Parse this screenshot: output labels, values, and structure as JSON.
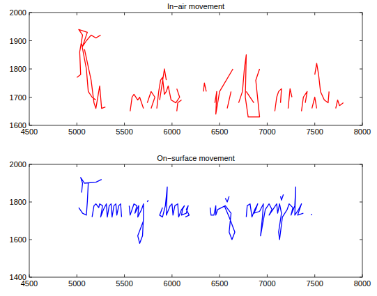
{
  "chart_data": [
    {
      "type": "line",
      "title": "In−air movement",
      "xlim": [
        4500,
        8000
      ],
      "xticks": [
        4500,
        5000,
        5500,
        6000,
        6500,
        7000,
        7500,
        8000
      ],
      "ylim": [
        1600,
        2000
      ],
      "yticks": [
        1600,
        1700,
        1800,
        1900,
        2000
      ],
      "series": [
        {
          "color": "#ff0000",
          "x": [
            5000,
            5040,
            5030,
            5060,
            5020,
            5110,
            5060,
            5100,
            5150,
            5200,
            5250,
            null,
            5050,
            5100,
            5120,
            5160,
            5200,
            null,
            5080,
            5150,
            5180,
            5200,
            5240,
            5250,
            5260,
            5300,
            null,
            5560,
            5580,
            5600,
            5640,
            5660,
            5700,
            null,
            5740,
            5760,
            5780,
            5820,
            5780,
            null,
            5840,
            5860,
            5880,
            5900,
            5920,
            5940,
            5960,
            5990,
            6040,
            6080,
            6050,
            null,
            5870,
            5920,
            5940,
            null,
            6050,
            6060,
            6100,
            null,
            6330,
            6340,
            6360,
            null,
            6450,
            6470,
            6460,
            6500,
            6640,
            null,
            6580,
            6620,
            null,
            6700,
            6740,
            6760,
            6780,
            6770,
            6800,
            6920,
            6880,
            6920,
            null,
            6780,
            6860,
            null,
            7080,
            7100,
            7120,
            7150,
            7140,
            null,
            7220,
            7240,
            7260,
            null,
            7360,
            7380,
            7420,
            7400,
            null,
            7500,
            7520,
            7540,
            7560,
            7600,
            7640,
            7650,
            null,
            7470,
            7500,
            7520,
            null,
            7720,
            7740,
            7760,
            7800
          ],
          "values": [
            1770,
            1780,
            1860,
            1920,
            1940,
            1930,
            1880,
            1900,
            1920,
            1910,
            1920,
            null,
            1890,
            1800,
            1720,
            1700,
            1690,
            null,
            1870,
            1760,
            1680,
            1660,
            1740,
            1700,
            1660,
            1665,
            null,
            1650,
            1700,
            1710,
            1690,
            1700,
            1660,
            null,
            1680,
            1700,
            1720,
            1700,
            1660,
            null,
            1660,
            1720,
            1760,
            1770,
            1710,
            1720,
            1740,
            1690,
            1680,
            1700,
            1730,
            null,
            1690,
            1800,
            1760,
            null,
            1650,
            1680,
            1690,
            null,
            1720,
            1750,
            1720,
            null,
            1680,
            1720,
            1640,
            1720,
            1800,
            null,
            1660,
            1720,
            null,
            1680,
            1720,
            1800,
            1850,
            1700,
            1630,
            1630,
            1760,
            1800,
            null,
            1720,
            1680,
            null,
            1650,
            1700,
            1720,
            1730,
            1680,
            null,
            1660,
            1730,
            1700,
            null,
            1650,
            1700,
            1720,
            1680,
            null,
            1780,
            1820,
            1780,
            1720,
            1690,
            1680,
            1720,
            null,
            1660,
            1700,
            1660,
            null,
            1660,
            1690,
            1670,
            1680
          ]
        }
      ]
    },
    {
      "type": "line",
      "title": "On−surface movement",
      "xlim": [
        4500,
        8000
      ],
      "xticks": [
        4500,
        5000,
        5500,
        6000,
        6500,
        7000,
        7500,
        8000
      ],
      "ylim": [
        1400,
        2000
      ],
      "yticks": [
        1400,
        1600,
        1800,
        2000
      ],
      "series": [
        {
          "color": "#0000ff",
          "x": [
            5050,
            5060,
            5040,
            5080,
            5200,
            5260,
            null,
            5120,
            5110,
            5100,
            5060,
            5020,
            null,
            5160,
            5180,
            5200,
            5230,
            5240,
            5270,
            5250,
            5280,
            5310,
            5320,
            5340,
            5360,
            5370,
            5390,
            5410,
            5420,
            5440,
            5460,
            5470,
            null,
            5550,
            5560,
            5600,
            5630,
            5610,
            5650,
            5640,
            5680,
            5700,
            5700,
            5690,
            5660,
            5640,
            5700,
            null,
            5740,
            5750,
            null,
            5900,
            5870,
            5900,
            5930,
            5950,
            5940,
            5980,
            6000,
            6010,
            6030,
            6060,
            6070,
            6100,
            6130,
            6110,
            6100,
            6150,
            6170,
            6150,
            6180,
            6140,
            null,
            6400,
            6410,
            6440,
            6460,
            6460,
            6480,
            6560,
            6620,
            6600,
            6630,
            6660,
            6600,
            6550,
            null,
            6560,
            6580,
            6600,
            null,
            6780,
            6790,
            6820,
            6840,
            6870,
            6900,
            6880,
            6860,
            6920,
            6960,
            6950,
            6930,
            6980,
            7020,
            7050,
            7020,
            7060,
            7100,
            7110,
            7130,
            7150,
            7120,
            7130,
            7160,
            7210,
            7230,
            7270,
            7250,
            7290,
            7300,
            7290,
            7330,
            7360,
            7340,
            7320,
            7380,
            null,
            7140,
            7150,
            7170,
            null,
            7460,
            7470
          ],
          "values": [
            1850,
            1900,
            1930,
            1900,
            1905,
            1920,
            null,
            1900,
            1800,
            1730,
            1740,
            1770,
            null,
            1720,
            1780,
            1790,
            1770,
            1790,
            1780,
            1720,
            1760,
            1790,
            1720,
            1780,
            1790,
            1720,
            1780,
            1790,
            1730,
            1780,
            1790,
            1720,
            null,
            1780,
            1730,
            1790,
            1780,
            1740,
            1780,
            1720,
            1760,
            1790,
            1720,
            1620,
            1580,
            1620,
            1700,
            null,
            1800,
            1810,
            null,
            1770,
            1730,
            1720,
            1780,
            1880,
            1730,
            1780,
            1790,
            1730,
            1780,
            1790,
            1720,
            1760,
            1780,
            1760,
            1730,
            1740,
            1780,
            1760,
            1730,
            1720,
            null,
            1770,
            1730,
            1730,
            1780,
            1730,
            1760,
            1780,
            1740,
            1640,
            1600,
            1640,
            1720,
            1780,
            null,
            1820,
            1800,
            1830,
            null,
            1720,
            1780,
            1790,
            1720,
            1760,
            1790,
            1760,
            1740,
            1750,
            1790,
            1720,
            1620,
            1760,
            1790,
            1760,
            1730,
            1760,
            1790,
            1740,
            1790,
            1740,
            1640,
            1600,
            1720,
            1760,
            1790,
            1770,
            1730,
            1780,
            1880,
            1730,
            1760,
            1790,
            1760,
            1730,
            1740,
            null,
            1830,
            1810,
            1840,
            null,
            1730,
            1735
          ]
        }
      ]
    }
  ]
}
